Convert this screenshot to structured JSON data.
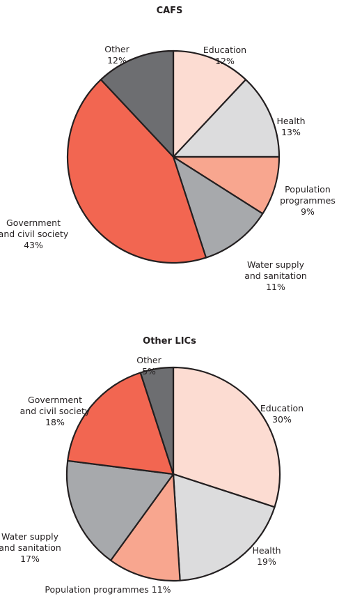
{
  "chart_data": [
    {
      "type": "pie",
      "title": "CAFS",
      "start_angle_deg": 0,
      "direction": "clockwise",
      "slices": [
        {
          "label_lines": [
            "Education"
          ],
          "value_text": "12%",
          "value": 12,
          "color": "#fcdcd2"
        },
        {
          "label_lines": [
            "Health"
          ],
          "value_text": "13%",
          "value": 13,
          "color": "#dcdcdd"
        },
        {
          "label_lines": [
            "Population",
            "programmes"
          ],
          "value_text": "9%",
          "value": 9,
          "color": "#f8a68f"
        },
        {
          "label_lines": [
            "Water supply",
            "and sanitation"
          ],
          "value_text": "11%",
          "value": 11,
          "color": "#a7a9ac"
        },
        {
          "label_lines": [
            "Government",
            "and civil society"
          ],
          "value_text": "43%",
          "value": 43,
          "color": "#f26651"
        },
        {
          "label_lines": [
            "Other"
          ],
          "value_text": "12%",
          "value": 12,
          "color": "#6d6e71"
        }
      ]
    },
    {
      "type": "pie",
      "title": "Other LICs",
      "start_angle_deg": 0,
      "direction": "clockwise",
      "slices": [
        {
          "label_lines": [
            "Education"
          ],
          "value_text": "30%",
          "value": 30,
          "color": "#fcdcd2"
        },
        {
          "label_lines": [
            "Health"
          ],
          "value_text": "19%",
          "value": 19,
          "color": "#dcdcdd"
        },
        {
          "label_lines": [
            "Population programmes 11%"
          ],
          "value_text": "",
          "value": 11,
          "color": "#f8a68f"
        },
        {
          "label_lines": [
            "Water supply",
            "and sanitation"
          ],
          "value_text": "17%",
          "value": 17,
          "color": "#a7a9ac"
        },
        {
          "label_lines": [
            "Government",
            "and civil society"
          ],
          "value_text": "18%",
          "value": 18,
          "color": "#f26651"
        },
        {
          "label_lines": [
            "Other"
          ],
          "value_text": "5%",
          "value": 5,
          "color": "#6d6e71"
        }
      ]
    }
  ]
}
